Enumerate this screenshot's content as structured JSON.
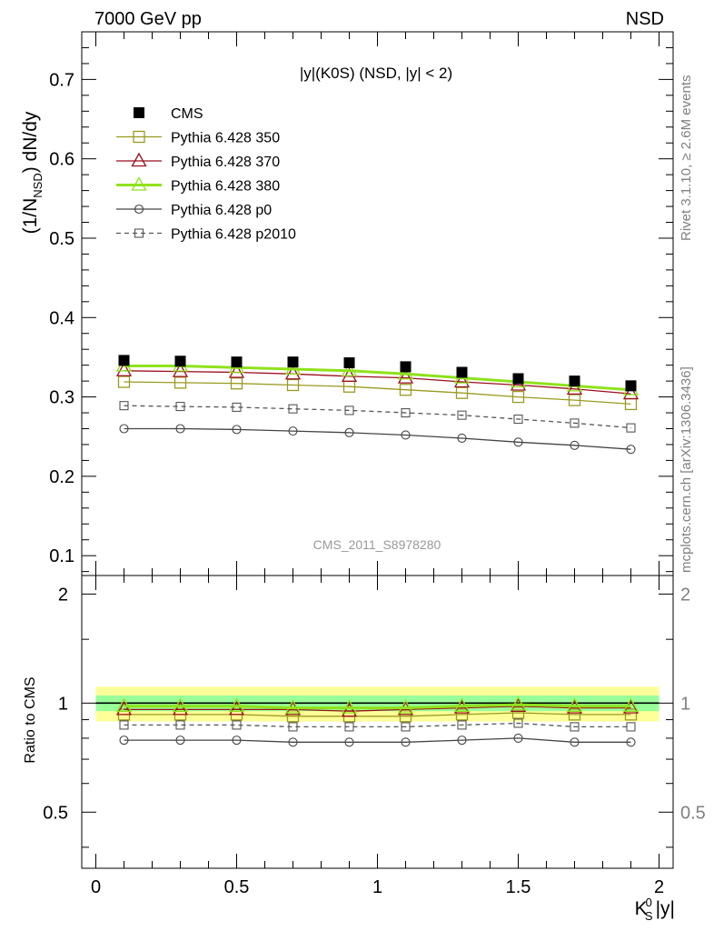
{
  "header": {
    "left": "7000 GeV pp",
    "right": "NSD"
  },
  "side_text": {
    "top": "Rivet 3.1.10, ≥ 2.6M events",
    "bottom": "mcplots.cern.ch [arXiv:1306.3436]"
  },
  "chart_data": [
    {
      "type": "line",
      "title": "|y|(K0S) (NSD, |y| < 2)",
      "watermark": "CMS_2011_S8978280",
      "ylabel": "(1/N_NSD) dN/dy",
      "xlim": [
        -0.05,
        2.05
      ],
      "ylim": [
        0.075,
        0.76
      ],
      "yticks": [
        0.1,
        0.2,
        0.3,
        0.4,
        0.5,
        0.6,
        0.7
      ],
      "ytick_labels": [
        "0.1",
        "0.2",
        "0.3",
        "0.4",
        "0.5",
        "0.6",
        "0.7"
      ],
      "x": [
        0.1,
        0.3,
        0.5,
        0.7,
        0.9,
        1.1,
        1.3,
        1.5,
        1.7,
        1.9
      ],
      "legend": [
        "CMS",
        "Pythia 6.428 350",
        "Pythia 6.428 370",
        "Pythia 6.428 380",
        "Pythia 6.428 p0",
        "Pythia 6.428 p2010"
      ],
      "series": [
        {
          "name": "CMS",
          "color": "#000000",
          "marker": "filled-square",
          "values": [
            0.346,
            0.345,
            0.344,
            0.344,
            0.343,
            0.338,
            0.331,
            0.323,
            0.32,
            0.314
          ]
        },
        {
          "name": "Pythia 6.428 350",
          "color": "#9a9a1f",
          "marker": "open-square",
          "values": [
            0.319,
            0.318,
            0.317,
            0.315,
            0.313,
            0.309,
            0.305,
            0.3,
            0.296,
            0.291
          ]
        },
        {
          "name": "Pythia 6.428 370",
          "color": "#9b0e1e",
          "marker": "open-triangle",
          "values": [
            0.333,
            0.332,
            0.331,
            0.329,
            0.326,
            0.324,
            0.319,
            0.315,
            0.31,
            0.304
          ]
        },
        {
          "name": "Pythia 6.428 380",
          "color": "#8fe21c",
          "marker": "open-triangle",
          "values": [
            0.339,
            0.339,
            0.337,
            0.335,
            0.333,
            0.329,
            0.324,
            0.319,
            0.314,
            0.309
          ]
        },
        {
          "name": "Pythia 6.428 p0",
          "color": "#444444",
          "marker": "open-circle",
          "values": [
            0.26,
            0.26,
            0.259,
            0.257,
            0.255,
            0.252,
            0.248,
            0.243,
            0.239,
            0.234
          ]
        },
        {
          "name": "Pythia 6.428 p2010",
          "color": "#555555",
          "marker": "open-square-dashed",
          "values": [
            0.289,
            0.288,
            0.287,
            0.285,
            0.283,
            0.28,
            0.277,
            0.272,
            0.267,
            0.261
          ]
        }
      ]
    },
    {
      "type": "line",
      "ylabel": "Ratio to CMS",
      "xlabel": "K_S^0 |y|",
      "xlim": [
        -0.05,
        2.05
      ],
      "ylim": [
        0.35,
        2.25
      ],
      "yticks": [
        0.5,
        1,
        2
      ],
      "ytick_labels": [
        "0.5",
        "1",
        "2"
      ],
      "xticks": [
        0,
        0.5,
        1,
        1.5,
        2
      ],
      "xtick_labels": [
        "0",
        "0.5",
        "1",
        "1.5",
        "2"
      ],
      "x": [
        0.1,
        0.3,
        0.5,
        0.7,
        0.9,
        1.1,
        1.3,
        1.5,
        1.7,
        1.9
      ],
      "bands": {
        "stat_sys_outer": [
          0.89,
          1.11
        ],
        "stat_inner": [
          0.95,
          1.05
        ],
        "outer_color": "#ffff99",
        "inner_color": "#99ff99"
      },
      "series": [
        {
          "name": "Pythia 6.428 350",
          "color": "#9a9a1f",
          "marker": "open-square",
          "values": [
            0.93,
            0.93,
            0.93,
            0.92,
            0.92,
            0.92,
            0.93,
            0.94,
            0.93,
            0.93
          ]
        },
        {
          "name": "Pythia 6.428 370",
          "color": "#9b0e1e",
          "marker": "open-triangle",
          "values": [
            0.96,
            0.96,
            0.96,
            0.96,
            0.95,
            0.96,
            0.97,
            0.98,
            0.97,
            0.97
          ]
        },
        {
          "name": "Pythia 6.428 380",
          "color": "#8fe21c",
          "marker": "open-triangle",
          "values": [
            0.98,
            0.98,
            0.98,
            0.97,
            0.97,
            0.97,
            0.98,
            0.99,
            0.98,
            0.98
          ]
        },
        {
          "name": "Pythia 6.428 p0",
          "color": "#444444",
          "marker": "open-circle",
          "values": [
            0.79,
            0.79,
            0.79,
            0.78,
            0.78,
            0.78,
            0.79,
            0.8,
            0.78,
            0.78
          ]
        },
        {
          "name": "Pythia 6.428 p2010",
          "color": "#555555",
          "marker": "open-square-dashed",
          "values": [
            0.87,
            0.87,
            0.87,
            0.86,
            0.86,
            0.86,
            0.87,
            0.88,
            0.86,
            0.86
          ]
        }
      ]
    }
  ]
}
